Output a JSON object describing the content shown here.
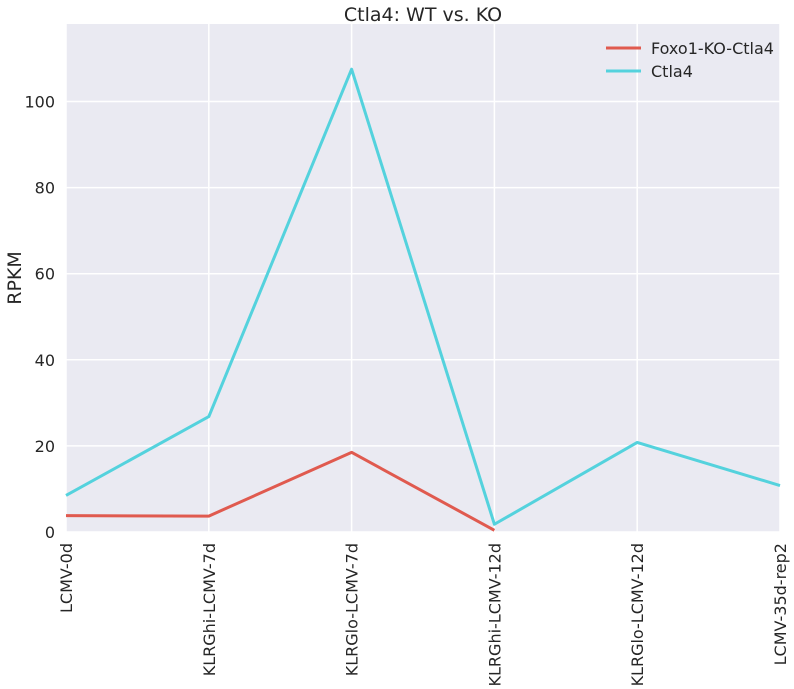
{
  "chart_data": {
    "type": "line",
    "title": "Ctla4: WT vs. KO",
    "xlabel": "",
    "ylabel": "RPKM",
    "categories": [
      "LCMV-0d",
      "KLRGhi-LCMV-7d",
      "KLRGlo-LCMV-7d",
      "KLRGhi-LCMV-12d",
      "KLRGlo-LCMV-12d",
      "LCMV-35d-rep2"
    ],
    "yticks": [
      0,
      20,
      40,
      60,
      80,
      100
    ],
    "ylim": [
      0,
      118
    ],
    "grid": true,
    "legend_position": "top-right",
    "series": [
      {
        "name": "Foxo1-KO-Ctla4",
        "color": "#e05a4f",
        "values": [
          3.8,
          3.7,
          18.5,
          0.4,
          null,
          null
        ]
      },
      {
        "name": "Ctla4",
        "color": "#54d2dd",
        "values": [
          8.5,
          26.8,
          107.5,
          1.8,
          20.8,
          10.8
        ]
      }
    ]
  }
}
